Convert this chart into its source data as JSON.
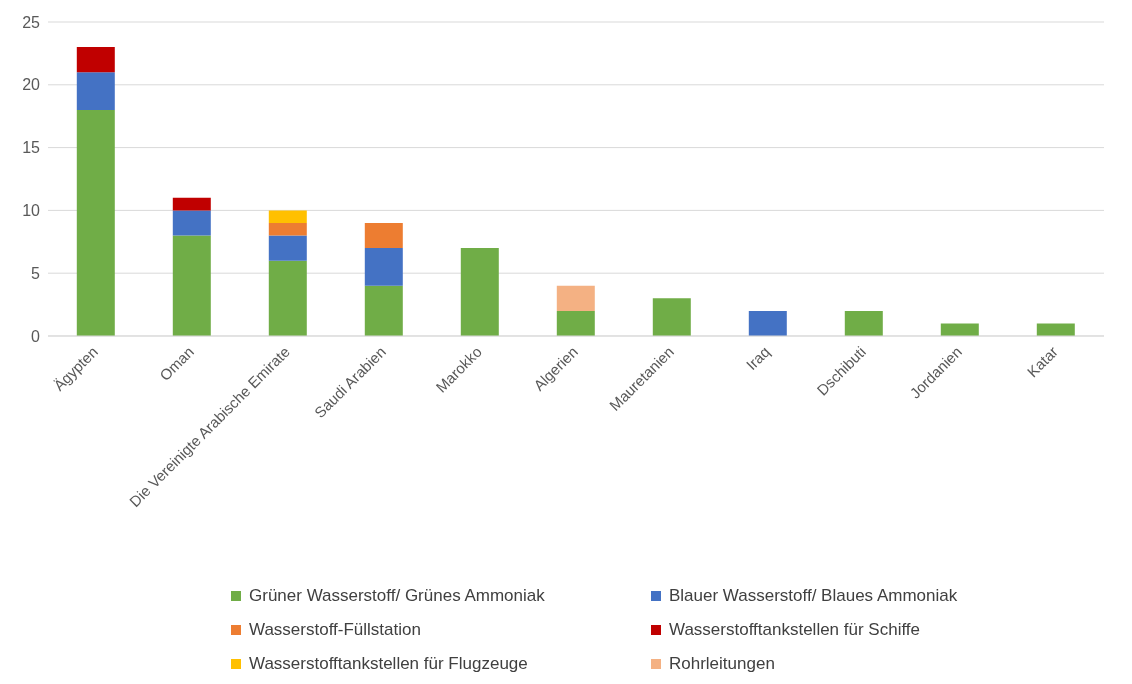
{
  "chart_data": {
    "type": "bar",
    "stacked": true,
    "categories": [
      "Ägypten",
      "Oman",
      "Die Vereinigte Arabische Emirate",
      "Saudi Arabien",
      "Marokko",
      "Algerien",
      "Mauretanien",
      "Iraq",
      "Dschibuti",
      "Jordanien",
      "Katar"
    ],
    "series": [
      {
        "name": "Grüner Wasserstoff/ Grünes Ammoniak",
        "color": "#70ad47",
        "values": [
          18,
          8,
          6,
          4,
          7,
          2,
          3,
          0,
          2,
          1,
          1
        ]
      },
      {
        "name": "Blauer Wasserstoff/ Blaues Ammoniak",
        "color": "#4472c4",
        "values": [
          3,
          2,
          2,
          3,
          0,
          0,
          0,
          2,
          0,
          0,
          0
        ]
      },
      {
        "name": "Wasserstoff-Füllstation",
        "color": "#ed7d31",
        "values": [
          0,
          0,
          1,
          2,
          0,
          0,
          0,
          0,
          0,
          0,
          0
        ]
      },
      {
        "name": "Wasserstofftankstellen für Schiffe",
        "color": "#c00000",
        "values": [
          2,
          1,
          0,
          0,
          0,
          0,
          0,
          0,
          0,
          0,
          0
        ]
      },
      {
        "name": "Wasserstofftankstellen für Flugzeuge",
        "color": "#ffc000",
        "values": [
          0,
          0,
          1,
          0,
          0,
          0,
          0,
          0,
          0,
          0,
          0
        ]
      },
      {
        "name": "Rohrleitungen",
        "color": "#f4b183",
        "values": [
          0,
          0,
          0,
          0,
          0,
          2,
          0,
          0,
          0,
          0,
          0
        ]
      }
    ],
    "ylim": [
      0,
      25
    ],
    "yticks": [
      0,
      5,
      10,
      15,
      20,
      25
    ],
    "grid": "y",
    "legend": "bottom"
  }
}
